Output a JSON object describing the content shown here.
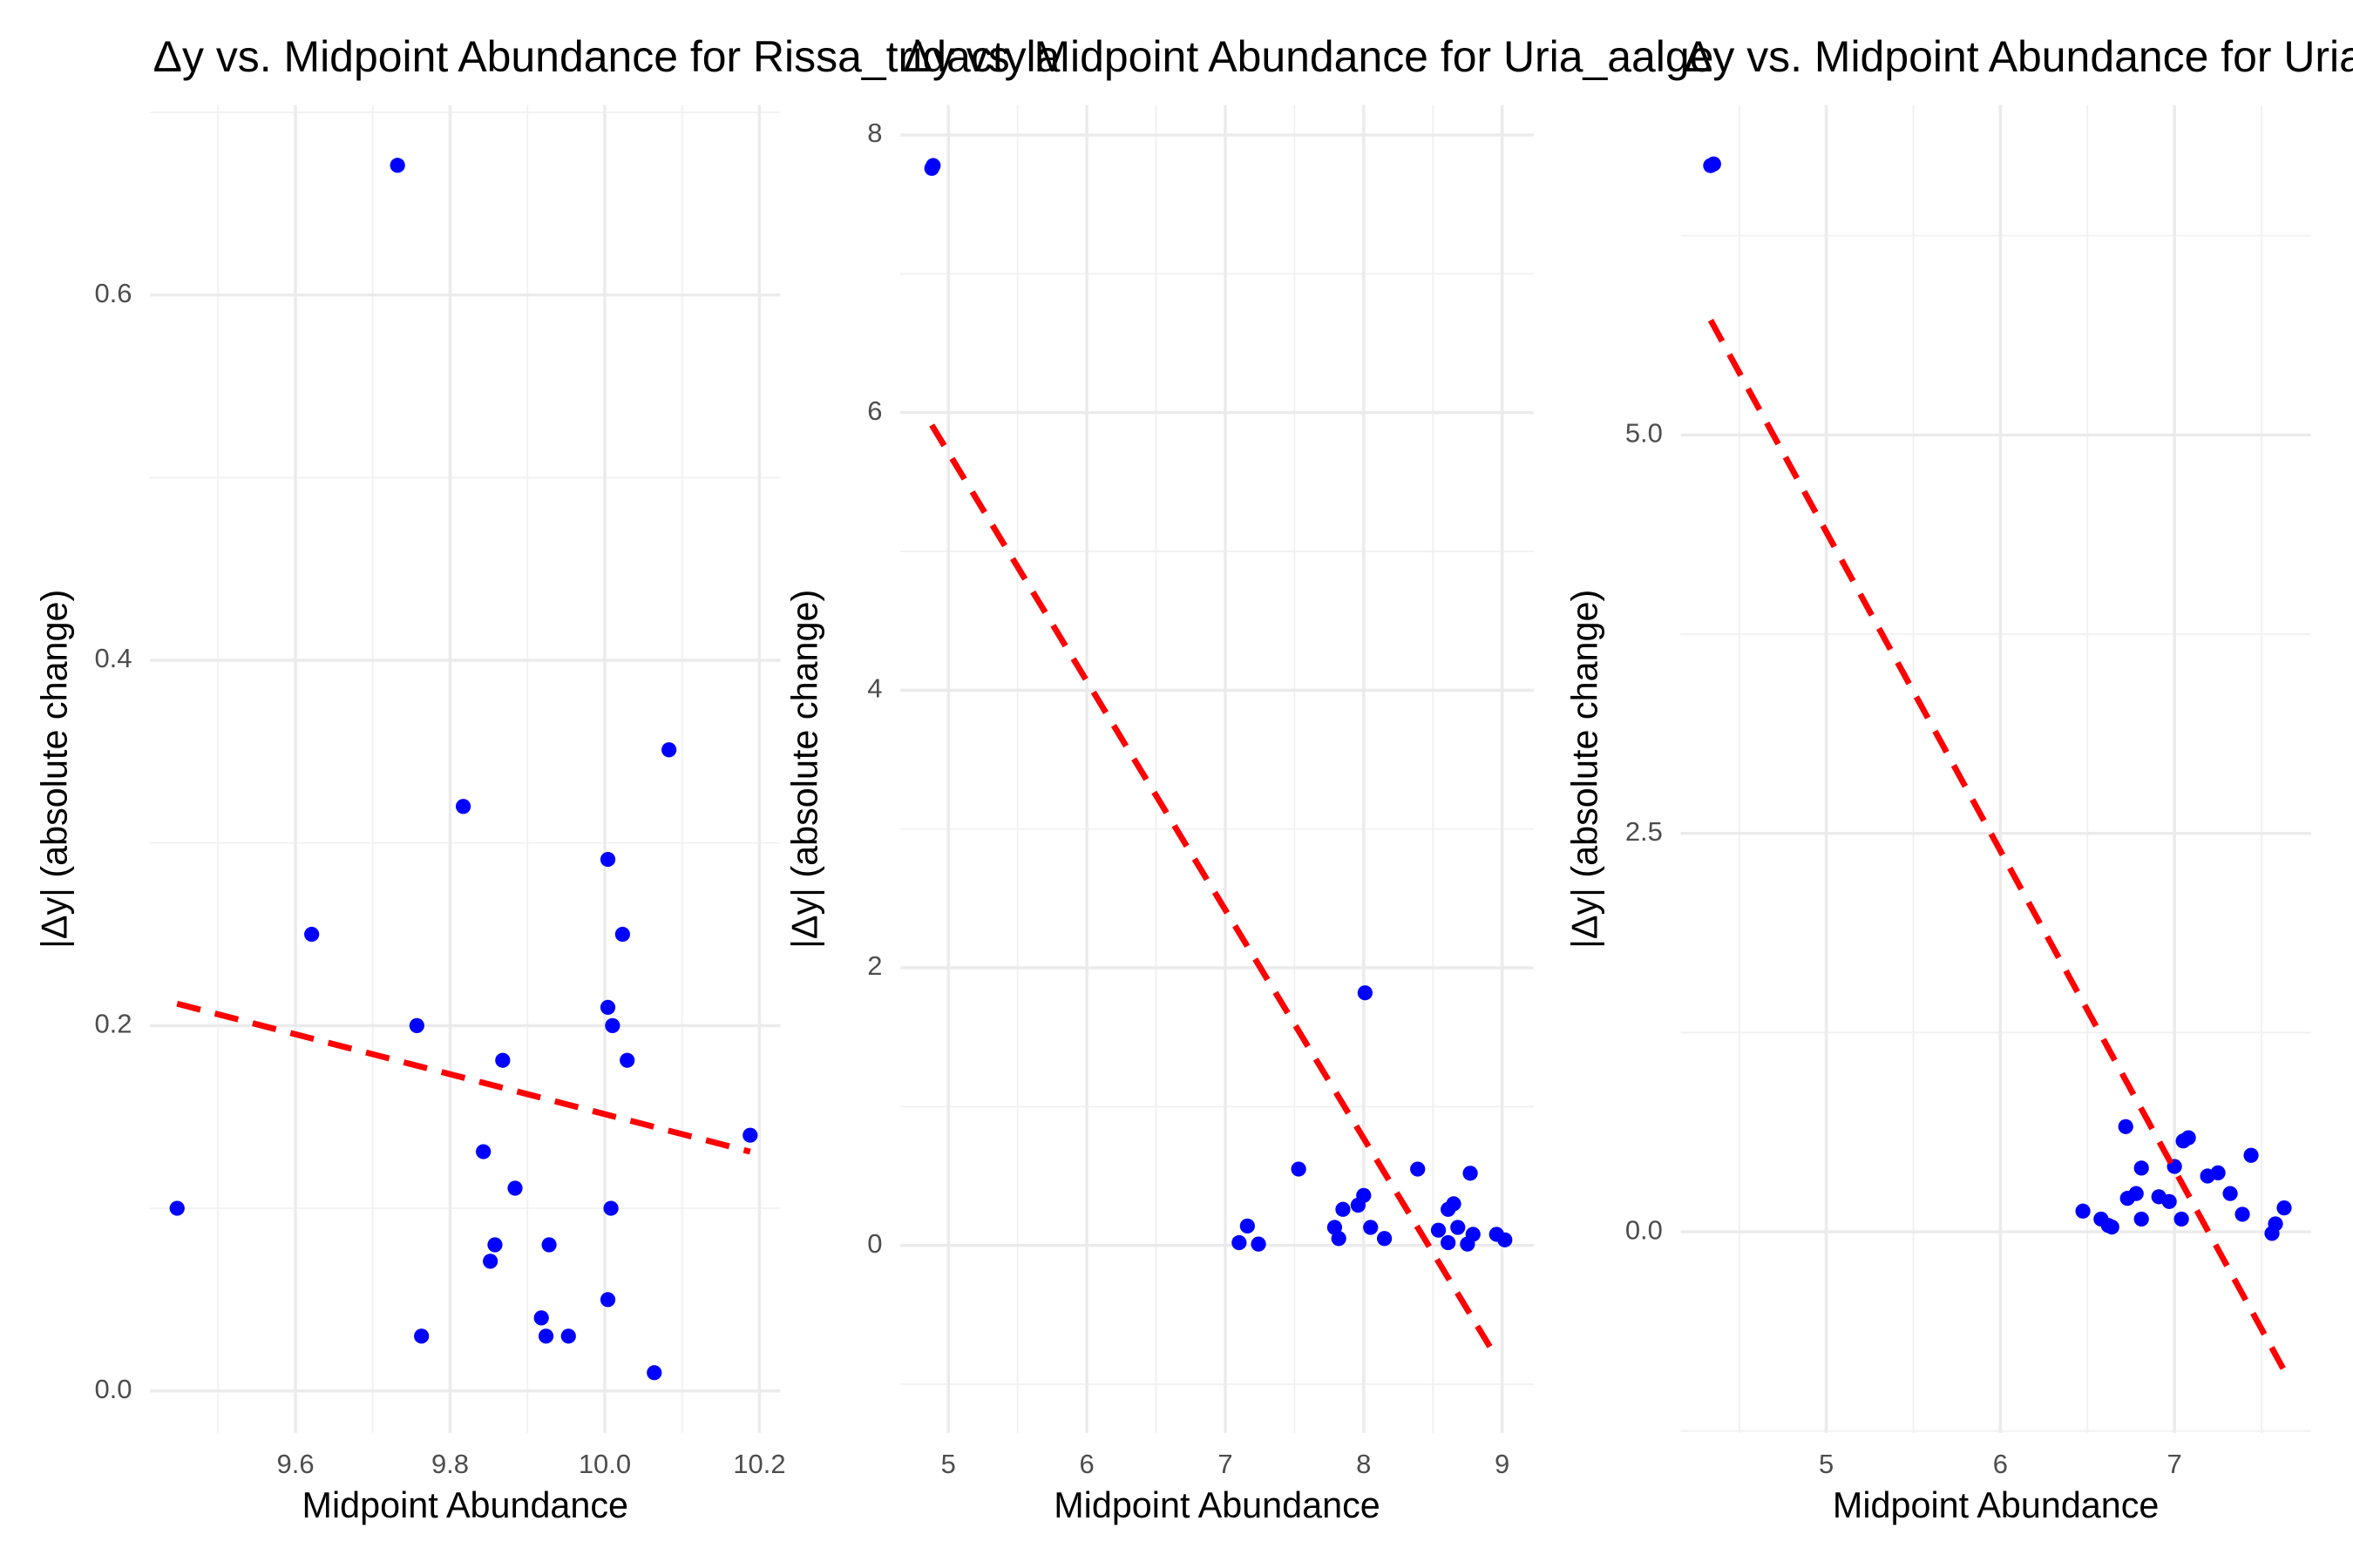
{
  "chart_data": [
    {
      "type": "scatter",
      "title": "Δy vs. Midpoint Abundance for Rissa_tridactyla",
      "x_label": "Midpoint Abundance",
      "y_label": "|Δy| (absolute change)",
      "color": "#0000ff",
      "x": [
        9.447,
        9.732,
        9.621,
        9.817,
        9.757,
        9.763,
        9.868,
        9.843,
        9.884,
        9.858,
        9.852,
        9.928,
        9.918,
        9.924,
        9.953,
        10.004,
        10.023,
        10.004,
        10.01,
        10.029,
        10.008,
        10.004,
        10.064,
        10.083,
        10.188
      ],
      "y": [
        0.1,
        0.671,
        0.25,
        0.32,
        0.2,
        0.03,
        0.181,
        0.131,
        0.111,
        0.08,
        0.071,
        0.08,
        0.04,
        0.03,
        0.03,
        0.291,
        0.25,
        0.21,
        0.2,
        0.181,
        0.1,
        0.05,
        0.01,
        0.351,
        0.14
      ],
      "trend": {
        "x": [
          9.447,
          10.188
        ],
        "y": [
          0.212,
          0.131
        ],
        "color": "#ff0000",
        "style": "dashed"
      },
      "xlim": [
        9.412,
        10.227
      ],
      "ylim": [
        -0.023,
        0.704
      ],
      "xticks": [
        9.6,
        9.8,
        {
          "value": 10.0,
          "label": "10.0"
        },
        10.2
      ],
      "yticks": [
        {
          "value": 0,
          "label": "0.0"
        },
        0.2,
        0.4,
        0.6
      ],
      "grid": true
    },
    {
      "type": "scatter",
      "title": "Δy vs. Midpoint Abundance for Uria_aalge",
      "x_label": "Midpoint Abundance",
      "y_label": "|Δy| (absolute change)",
      "color": "#0000ff",
      "x": [
        4.88,
        4.89,
        7.1,
        7.16,
        7.24,
        7.53,
        7.79,
        7.82,
        7.85,
        7.96,
        8.0,
        8.01,
        8.05,
        8.15,
        8.39,
        8.54,
        8.61,
        8.61,
        8.65,
        8.68,
        8.75,
        8.79,
        8.77,
        8.96,
        9.02
      ],
      "y": [
        7.76,
        7.78,
        0.02,
        0.14,
        0.01,
        0.55,
        0.13,
        0.05,
        0.26,
        0.29,
        0.36,
        1.82,
        0.13,
        0.05,
        0.55,
        0.11,
        0.02,
        0.26,
        0.3,
        0.13,
        0.01,
        0.08,
        0.52,
        0.08,
        0.04
      ],
      "trend": {
        "x": [
          4.88,
          8.93
        ],
        "y": [
          5.91,
          -0.76
        ],
        "color": "#ff0000",
        "style": "dashed"
      },
      "xlim": [
        4.653,
        9.228
      ],
      "ylim": [
        -1.351,
        8.216
      ],
      "xticks": [
        5,
        6,
        7,
        8,
        9
      ],
      "yticks": [
        0,
        2,
        4,
        6,
        8
      ],
      "grid": true
    },
    {
      "type": "scatter",
      "title": "Δy vs. Midpoint Abundance for Uria_lomvia",
      "x_label": "Midpoint Abundance",
      "y_label": "|Δy| (absolute change)",
      "color": "#0000ff",
      "x": [
        4.336,
        4.353,
        6.474,
        6.578,
        6.62,
        6.64,
        6.72,
        6.73,
        6.78,
        6.81,
        6.81,
        6.91,
        6.97,
        7.0,
        7.04,
        7.05,
        7.08,
        7.19,
        7.25,
        7.32,
        7.39,
        7.44,
        7.56,
        7.58,
        7.63
      ],
      "y": [
        6.69,
        6.7,
        0.13,
        0.08,
        0.04,
        0.03,
        0.66,
        0.21,
        0.24,
        0.4,
        0.08,
        0.22,
        0.19,
        0.41,
        0.08,
        0.57,
        0.59,
        0.35,
        0.37,
        0.24,
        0.11,
        0.48,
        -0.01,
        0.05,
        0.15
      ],
      "trend": {
        "x": [
          4.336,
          7.63
        ],
        "y": [
          5.72,
          -0.87
        ],
        "color": "#ff0000",
        "style": "dashed"
      },
      "xlim": [
        4.164,
        7.784
      ],
      "ylim": [
        -1.262,
        7.07
      ],
      "xticks": [
        5,
        6,
        7
      ],
      "yticks": [
        {
          "value": 0,
          "label": "0.0"
        },
        2.5,
        {
          "value": 5,
          "label": "5.0"
        }
      ],
      "grid": true
    }
  ]
}
